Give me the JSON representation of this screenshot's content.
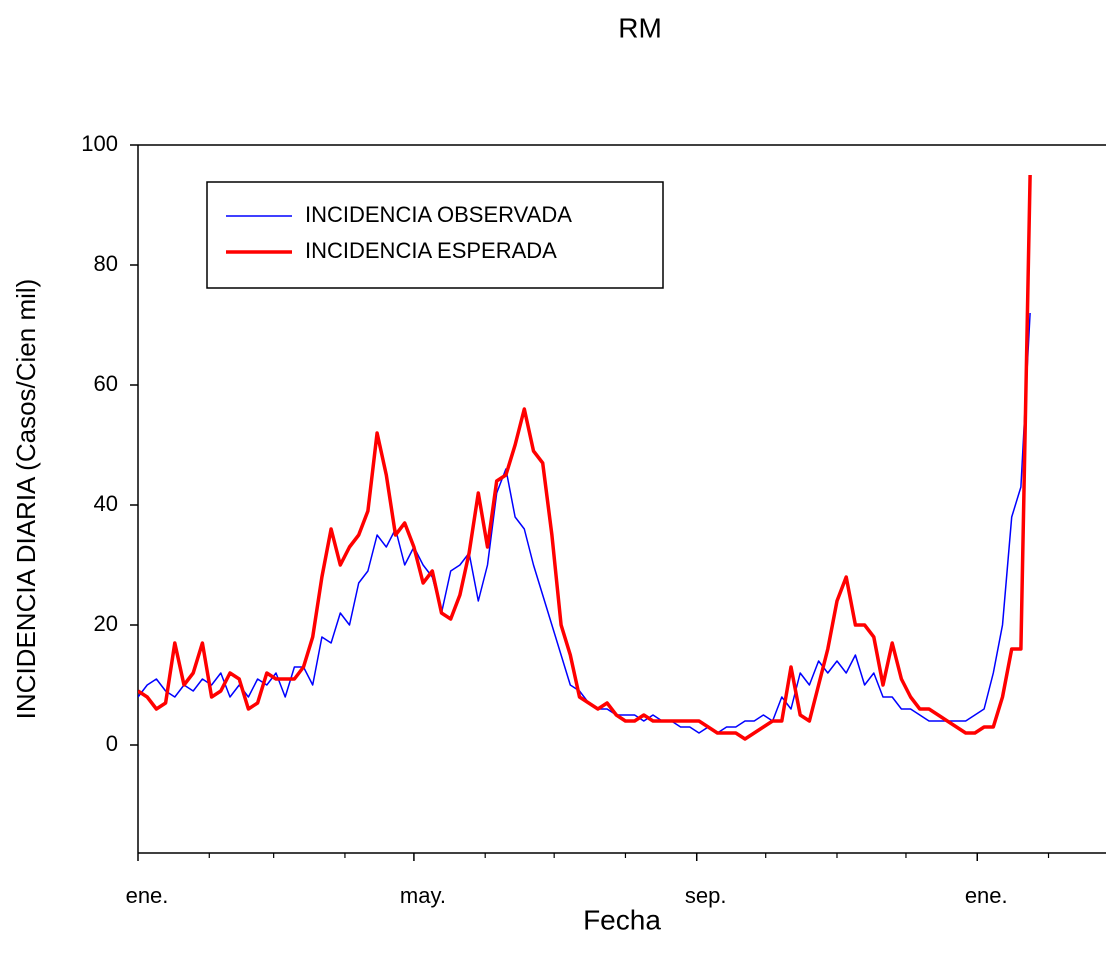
{
  "chart_data": {
    "type": "line",
    "title": "RM",
    "xlabel": "Fecha",
    "ylabel": "INCIDENCIA DIARIA (Casos/Cien mil)",
    "x": [
      0,
      4,
      8,
      12,
      16,
      20,
      24,
      28,
      32,
      36,
      40,
      44,
      48,
      52,
      56,
      60,
      64,
      68,
      72,
      76,
      80,
      84,
      88,
      92,
      96,
      100,
      104,
      108,
      112,
      116,
      120,
      124,
      128,
      132,
      136,
      140,
      144,
      148,
      152,
      156,
      160,
      164,
      168,
      172,
      176,
      180,
      184,
      188,
      192,
      196,
      200,
      204,
      208,
      212,
      216,
      220,
      224,
      228,
      232,
      236,
      240,
      244,
      248,
      252,
      256,
      260,
      264,
      268,
      272,
      276,
      280,
      284,
      288,
      292,
      296,
      300,
      304,
      308,
      312,
      316,
      320,
      324,
      328,
      332,
      336,
      340,
      344,
      348,
      352,
      356,
      360,
      364,
      368,
      372,
      376,
      380,
      384,
      388
    ],
    "series": [
      {
        "name": "INCIDENCIA OBSERVADA",
        "color": "#0000ff",
        "width": 1.5,
        "values": [
          8,
          10,
          11,
          9,
          8,
          10,
          9,
          11,
          10,
          12,
          8,
          10,
          8,
          11,
          10,
          12,
          8,
          13,
          13,
          10,
          18,
          17,
          22,
          20,
          27,
          29,
          35,
          33,
          36,
          30,
          33,
          30,
          28,
          22,
          29,
          30,
          32,
          24,
          30,
          42,
          46,
          38,
          36,
          30,
          25,
          20,
          15,
          10,
          9,
          7,
          6,
          6,
          5,
          5,
          5,
          4,
          5,
          4,
          4,
          3,
          3,
          2,
          3,
          2,
          3,
          3,
          4,
          4,
          5,
          4,
          8,
          6,
          12,
          10,
          14,
          12,
          14,
          12,
          15,
          10,
          12,
          8,
          8,
          6,
          6,
          5,
          4,
          4,
          4,
          4,
          4,
          5,
          6,
          12,
          20,
          38,
          43,
          72
        ]
      },
      {
        "name": "INCIDENCIA ESPERADA",
        "color": "#ff0000",
        "width": 3.5,
        "values": [
          9,
          8,
          6,
          7,
          17,
          10,
          12,
          17,
          8,
          9,
          12,
          11,
          6,
          7,
          12,
          11,
          11,
          11,
          13,
          18,
          28,
          36,
          30,
          33,
          35,
          39,
          52,
          45,
          35,
          37,
          33,
          27,
          29,
          22,
          21,
          25,
          32,
          42,
          33,
          44,
          45,
          50,
          56,
          49,
          47,
          35,
          20,
          15,
          8,
          7,
          6,
          7,
          5,
          4,
          4,
          5,
          4,
          4,
          4,
          4,
          4,
          4,
          3,
          2,
          2,
          2,
          1,
          2,
          3,
          4,
          4,
          13,
          5,
          4,
          10,
          16,
          24,
          28,
          20,
          20,
          18,
          10,
          17,
          11,
          8,
          6,
          6,
          5,
          4,
          3,
          2,
          2,
          3,
          3,
          8,
          16,
          16,
          95
        ]
      }
    ],
    "xlim": [
      0,
      421
    ],
    "xticks": [
      {
        "value": 0,
        "label": "ene."
      },
      {
        "value": 120,
        "label": "may."
      },
      {
        "value": 243,
        "label": "sep."
      },
      {
        "value": 365,
        "label": "ene."
      }
    ],
    "xminorticks": [
      31,
      59,
      90,
      151,
      181,
      212,
      273,
      304,
      334,
      396
    ],
    "ylim": [
      -18,
      100
    ],
    "yticks": [
      0,
      20,
      40,
      60,
      80,
      100
    ],
    "grid": false,
    "legend": "upper left"
  }
}
